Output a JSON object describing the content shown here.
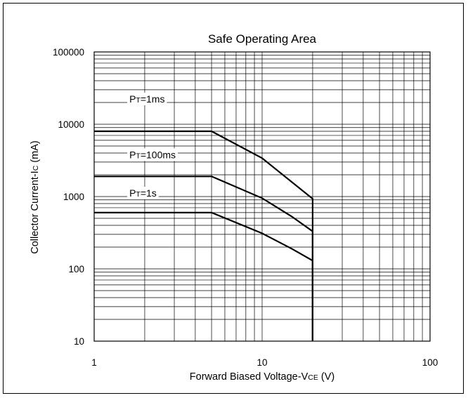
{
  "chart_data": {
    "type": "line",
    "title": "Safe Operating Area",
    "xlabel": {
      "main": "Forward Biased Voltage-V",
      "sub": "CE",
      "unit": " (V)"
    },
    "ylabel": {
      "main": "Collector Current-I",
      "sub": "C",
      "unit": " (mA)"
    },
    "xscale": "log",
    "yscale": "log",
    "xlim": [
      1,
      100
    ],
    "ylim": [
      10,
      100000
    ],
    "grid": true,
    "x_ticks": [
      {
        "value": 1,
        "label": "1"
      },
      {
        "value": 10,
        "label": "10"
      },
      {
        "value": 100,
        "label": "100"
      }
    ],
    "y_ticks": [
      {
        "value": 10,
        "label": "10"
      },
      {
        "value": 100,
        "label": "100"
      },
      {
        "value": 1000,
        "label": "1000"
      },
      {
        "value": 10000,
        "label": "10000"
      },
      {
        "value": 100000,
        "label": "100000"
      }
    ],
    "series": [
      {
        "label_main": "P",
        "label_sub": "T",
        "label_rest": "=1ms",
        "label_pos": [
          1.62,
          20000
        ],
        "points": [
          [
            1,
            8000
          ],
          [
            5,
            8000
          ],
          [
            10,
            3400
          ],
          [
            20,
            930
          ],
          [
            20,
            10
          ]
        ]
      },
      {
        "label_main": "P",
        "label_sub": "T",
        "label_rest": "=100ms",
        "label_pos": [
          1.62,
          3400
        ],
        "points": [
          [
            1,
            1900
          ],
          [
            5,
            1900
          ],
          [
            10,
            950
          ],
          [
            15,
            530
          ],
          [
            20,
            330
          ],
          [
            20,
            10
          ]
        ]
      },
      {
        "label_main": "P",
        "label_sub": "T",
        "label_rest": "=1s",
        "label_pos": [
          1.62,
          1000
        ],
        "points": [
          [
            1,
            600
          ],
          [
            5,
            600
          ],
          [
            10,
            310
          ],
          [
            15,
            190
          ],
          [
            20,
            130
          ],
          [
            20,
            10
          ]
        ]
      }
    ]
  }
}
